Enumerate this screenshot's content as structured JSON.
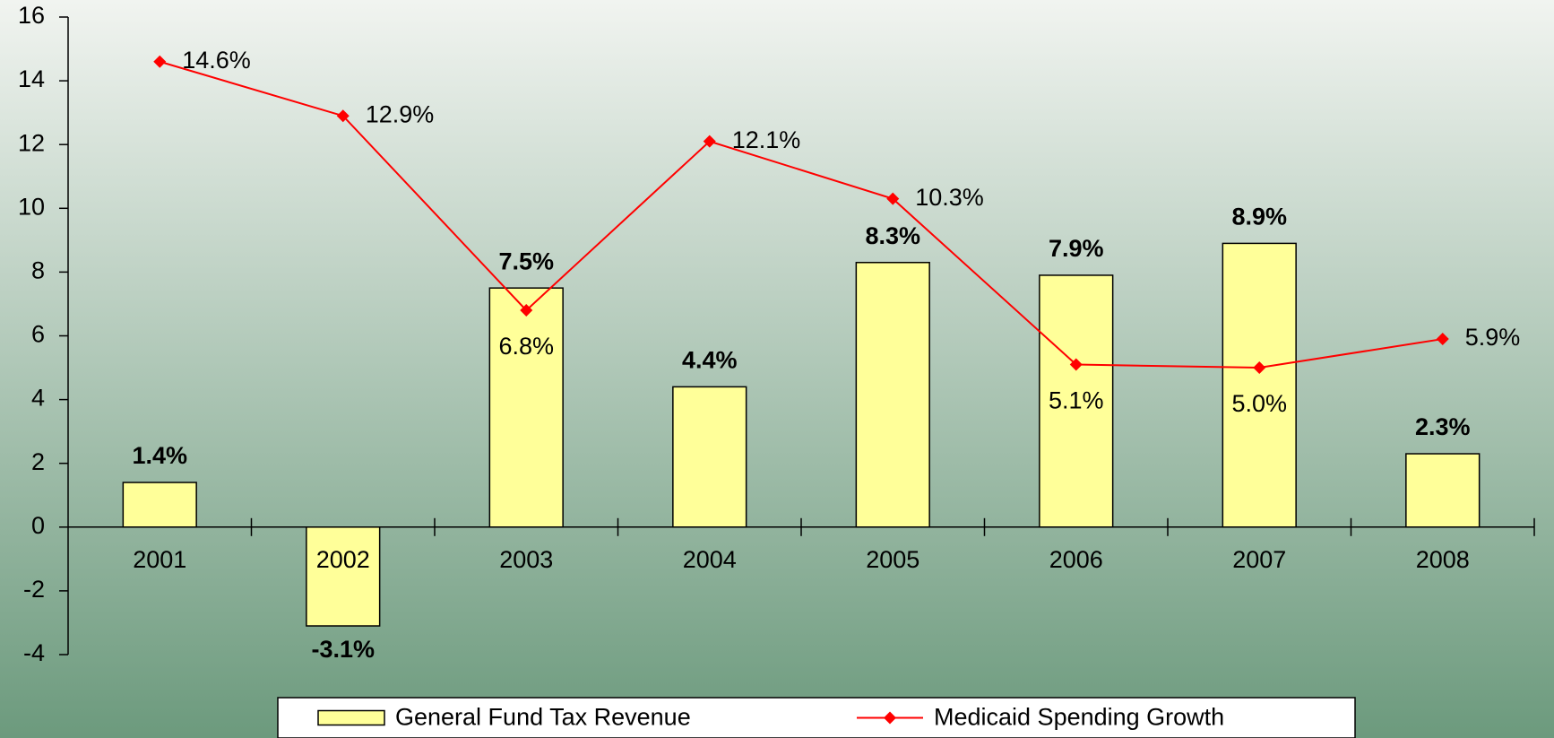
{
  "chart_data": {
    "type": "bar_line",
    "categories": [
      "2001",
      "2002",
      "2003",
      "2004",
      "2005",
      "2006",
      "2007",
      "2008"
    ],
    "series": [
      {
        "name": "General Fund Tax Revenue",
        "type": "bar",
        "color": "#ffff99",
        "values": [
          1.4,
          -3.1,
          7.5,
          4.4,
          8.3,
          7.9,
          8.9,
          2.3
        ],
        "value_labels": [
          "1.4%",
          "-3.1%",
          "7.5%",
          "4.4%",
          "8.3%",
          "7.9%",
          "8.9%",
          "2.3%"
        ]
      },
      {
        "name": "Medicaid Spending Growth",
        "type": "line",
        "color": "#ff0000",
        "values": [
          14.6,
          12.9,
          6.8,
          12.1,
          10.3,
          5.1,
          5.0,
          5.9
        ],
        "value_labels": [
          "14.6%",
          "12.9%",
          "6.8%",
          "12.1%",
          "10.3%",
          "5.1%",
          "5.0%",
          "5.9%"
        ]
      }
    ],
    "ylim": [
      -4,
      16
    ],
    "yticks": [
      -4,
      -2,
      0,
      2,
      4,
      6,
      8,
      10,
      12,
      14,
      16
    ],
    "grid": false,
    "legend": "bottom"
  }
}
